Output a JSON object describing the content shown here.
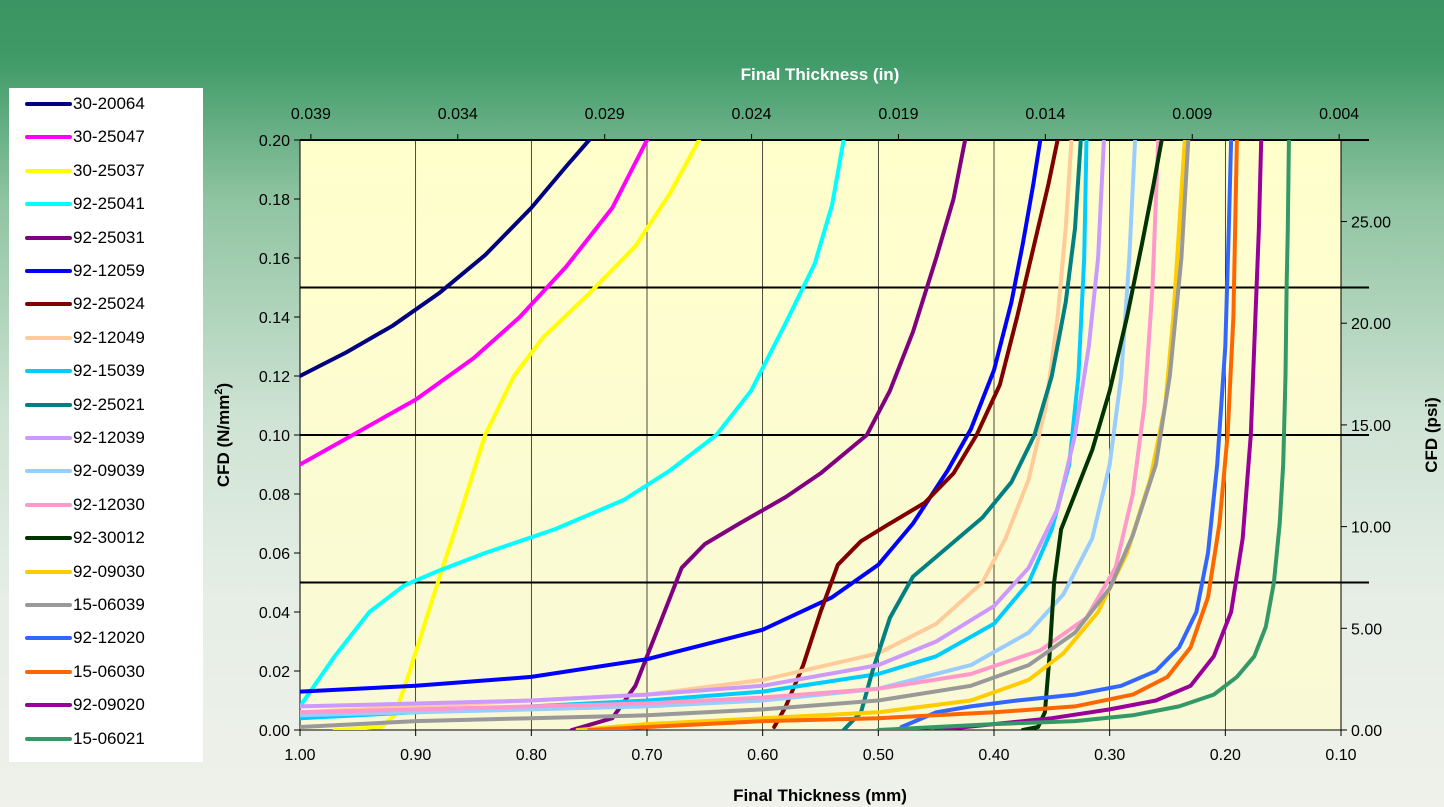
{
  "chart_data": {
    "type": "line",
    "xlabel_bottom": "Final Thickness (mm)",
    "xlabel_top": "Final Thickness (in)",
    "ylabel_left": "CFD (N/mm",
    "ylabel_left_sup": "2",
    "ylabel_left_close": ")",
    "ylabel_right": "CFD (psi)",
    "xlim": [
      1.0,
      0.1
    ],
    "ylim": [
      0,
      0.2
    ],
    "x_ticks_bottom": [
      "1.00",
      "0.90",
      "0.80",
      "0.70",
      "0.60",
      "0.50",
      "0.40",
      "0.30",
      "0.20",
      "0.10"
    ],
    "x_ticks_top": [
      "0.039",
      "0.034",
      "0.029",
      "0.024",
      "0.019",
      "0.014",
      "0.009",
      "0.004"
    ],
    "y_ticks_left": [
      "0.00",
      "0.02",
      "0.04",
      "0.06",
      "0.08",
      "0.10",
      "0.12",
      "0.14",
      "0.16",
      "0.18",
      "0.20"
    ],
    "y_ticks_right": [
      "0.00",
      "5.00",
      "10.00",
      "15.00",
      "20.00",
      "25.00"
    ],
    "reference_lines_y": [
      0.05,
      0.1,
      0.15
    ],
    "series": [
      {
        "name": "30-20064",
        "color": "#000080",
        "points": [
          [
            1.0,
            0.12
          ],
          [
            0.96,
            0.128
          ],
          [
            0.92,
            0.137
          ],
          [
            0.88,
            0.148
          ],
          [
            0.84,
            0.161
          ],
          [
            0.8,
            0.177
          ],
          [
            0.77,
            0.191
          ],
          [
            0.75,
            0.2
          ]
        ]
      },
      {
        "name": "30-25047",
        "color": "#ff00ff",
        "points": [
          [
            1.0,
            0.09
          ],
          [
            0.95,
            0.101
          ],
          [
            0.9,
            0.112
          ],
          [
            0.85,
            0.126
          ],
          [
            0.81,
            0.14
          ],
          [
            0.77,
            0.157
          ],
          [
            0.73,
            0.177
          ],
          [
            0.7,
            0.2
          ]
        ]
      },
      {
        "name": "30-25037",
        "color": "#ffff00",
        "points": [
          [
            0.97,
            0.0
          ],
          [
            0.93,
            0.001
          ],
          [
            0.918,
            0.005
          ],
          [
            0.905,
            0.02
          ],
          [
            0.885,
            0.045
          ],
          [
            0.86,
            0.075
          ],
          [
            0.84,
            0.1
          ],
          [
            0.815,
            0.12
          ],
          [
            0.79,
            0.133
          ],
          [
            0.75,
            0.148
          ],
          [
            0.71,
            0.164
          ],
          [
            0.68,
            0.182
          ],
          [
            0.655,
            0.2
          ]
        ]
      },
      {
        "name": "92-25041",
        "color": "#00ffff",
        "points": [
          [
            1.0,
            0.008
          ],
          [
            0.97,
            0.025
          ],
          [
            0.94,
            0.04
          ],
          [
            0.91,
            0.049
          ],
          [
            0.88,
            0.054
          ],
          [
            0.84,
            0.06
          ],
          [
            0.78,
            0.068
          ],
          [
            0.72,
            0.078
          ],
          [
            0.68,
            0.088
          ],
          [
            0.64,
            0.1
          ],
          [
            0.61,
            0.115
          ],
          [
            0.58,
            0.138
          ],
          [
            0.555,
            0.158
          ],
          [
            0.54,
            0.178
          ],
          [
            0.53,
            0.2
          ]
        ]
      },
      {
        "name": "92-25031",
        "color": "#800080",
        "points": [
          [
            0.765,
            0.0
          ],
          [
            0.73,
            0.004
          ],
          [
            0.71,
            0.015
          ],
          [
            0.69,
            0.035
          ],
          [
            0.67,
            0.055
          ],
          [
            0.65,
            0.063
          ],
          [
            0.62,
            0.07
          ],
          [
            0.58,
            0.079
          ],
          [
            0.55,
            0.087
          ],
          [
            0.51,
            0.1
          ],
          [
            0.49,
            0.115
          ],
          [
            0.47,
            0.135
          ],
          [
            0.45,
            0.16
          ],
          [
            0.435,
            0.18
          ],
          [
            0.425,
            0.2
          ]
        ]
      },
      {
        "name": "92-12059",
        "color": "#0000ff",
        "points": [
          [
            1.0,
            0.013
          ],
          [
            0.9,
            0.015
          ],
          [
            0.8,
            0.018
          ],
          [
            0.7,
            0.024
          ],
          [
            0.6,
            0.034
          ],
          [
            0.54,
            0.045
          ],
          [
            0.5,
            0.056
          ],
          [
            0.47,
            0.07
          ],
          [
            0.44,
            0.088
          ],
          [
            0.42,
            0.102
          ],
          [
            0.4,
            0.122
          ],
          [
            0.385,
            0.145
          ],
          [
            0.375,
            0.165
          ],
          [
            0.366,
            0.185
          ],
          [
            0.36,
            0.2
          ]
        ]
      },
      {
        "name": "92-25024",
        "color": "#800000",
        "points": [
          [
            0.59,
            0.001
          ],
          [
            0.58,
            0.008
          ],
          [
            0.565,
            0.022
          ],
          [
            0.55,
            0.04
          ],
          [
            0.535,
            0.056
          ],
          [
            0.515,
            0.064
          ],
          [
            0.49,
            0.07
          ],
          [
            0.46,
            0.077
          ],
          [
            0.435,
            0.087
          ],
          [
            0.415,
            0.1
          ],
          [
            0.395,
            0.117
          ],
          [
            0.38,
            0.14
          ],
          [
            0.365,
            0.165
          ],
          [
            0.353,
            0.185
          ],
          [
            0.345,
            0.2
          ]
        ]
      },
      {
        "name": "92-12049",
        "color": "#ffcc99",
        "points": [
          [
            1.0,
            0.006
          ],
          [
            0.9,
            0.008
          ],
          [
            0.8,
            0.01
          ],
          [
            0.7,
            0.012
          ],
          [
            0.6,
            0.017
          ],
          [
            0.5,
            0.026
          ],
          [
            0.45,
            0.036
          ],
          [
            0.41,
            0.05
          ],
          [
            0.39,
            0.065
          ],
          [
            0.37,
            0.085
          ],
          [
            0.355,
            0.11
          ],
          [
            0.345,
            0.14
          ],
          [
            0.338,
            0.17
          ],
          [
            0.333,
            0.2
          ]
        ]
      },
      {
        "name": "92-15039",
        "color": "#00ccff",
        "points": [
          [
            1.0,
            0.004
          ],
          [
            0.9,
            0.006
          ],
          [
            0.8,
            0.008
          ],
          [
            0.7,
            0.01
          ],
          [
            0.6,
            0.013
          ],
          [
            0.5,
            0.019
          ],
          [
            0.45,
            0.025
          ],
          [
            0.4,
            0.036
          ],
          [
            0.37,
            0.05
          ],
          [
            0.35,
            0.068
          ],
          [
            0.335,
            0.09
          ],
          [
            0.327,
            0.12
          ],
          [
            0.322,
            0.16
          ],
          [
            0.32,
            0.2
          ]
        ]
      },
      {
        "name": "92-25021",
        "color": "#008080",
        "points": [
          [
            0.53,
            0.0
          ],
          [
            0.515,
            0.006
          ],
          [
            0.505,
            0.02
          ],
          [
            0.49,
            0.038
          ],
          [
            0.47,
            0.052
          ],
          [
            0.44,
            0.062
          ],
          [
            0.41,
            0.072
          ],
          [
            0.385,
            0.084
          ],
          [
            0.365,
            0.1
          ],
          [
            0.35,
            0.12
          ],
          [
            0.338,
            0.145
          ],
          [
            0.33,
            0.17
          ],
          [
            0.325,
            0.2
          ]
        ]
      },
      {
        "name": "92-12039",
        "color": "#cc99ff",
        "points": [
          [
            1.0,
            0.008
          ],
          [
            0.9,
            0.009
          ],
          [
            0.8,
            0.01
          ],
          [
            0.7,
            0.012
          ],
          [
            0.6,
            0.015
          ],
          [
            0.5,
            0.022
          ],
          [
            0.45,
            0.03
          ],
          [
            0.4,
            0.042
          ],
          [
            0.37,
            0.055
          ],
          [
            0.345,
            0.075
          ],
          [
            0.33,
            0.1
          ],
          [
            0.318,
            0.13
          ],
          [
            0.31,
            0.16
          ],
          [
            0.305,
            0.2
          ]
        ]
      },
      {
        "name": "92-09039",
        "color": "#99ccff",
        "points": [
          [
            1.0,
            0.005
          ],
          [
            0.9,
            0.006
          ],
          [
            0.8,
            0.007
          ],
          [
            0.7,
            0.008
          ],
          [
            0.6,
            0.01
          ],
          [
            0.5,
            0.014
          ],
          [
            0.42,
            0.022
          ],
          [
            0.37,
            0.033
          ],
          [
            0.34,
            0.046
          ],
          [
            0.315,
            0.065
          ],
          [
            0.3,
            0.09
          ],
          [
            0.29,
            0.12
          ],
          [
            0.283,
            0.16
          ],
          [
            0.278,
            0.2
          ]
        ]
      },
      {
        "name": "92-12030",
        "color": "#ff99cc",
        "points": [
          [
            1.0,
            0.006
          ],
          [
            0.9,
            0.007
          ],
          [
            0.8,
            0.008
          ],
          [
            0.7,
            0.009
          ],
          [
            0.6,
            0.011
          ],
          [
            0.5,
            0.014
          ],
          [
            0.42,
            0.019
          ],
          [
            0.36,
            0.027
          ],
          [
            0.32,
            0.038
          ],
          [
            0.295,
            0.055
          ],
          [
            0.28,
            0.08
          ],
          [
            0.27,
            0.11
          ],
          [
            0.263,
            0.15
          ],
          [
            0.258,
            0.2
          ]
        ]
      },
      {
        "name": "92-30012",
        "color": "#003300",
        "points": [
          [
            0.375,
            0.0
          ],
          [
            0.362,
            0.001
          ],
          [
            0.356,
            0.006
          ],
          [
            0.352,
            0.025
          ],
          [
            0.348,
            0.05
          ],
          [
            0.342,
            0.068
          ],
          [
            0.33,
            0.08
          ],
          [
            0.315,
            0.095
          ],
          [
            0.3,
            0.115
          ],
          [
            0.285,
            0.14
          ],
          [
            0.272,
            0.165
          ],
          [
            0.262,
            0.185
          ],
          [
            0.255,
            0.2
          ]
        ]
      },
      {
        "name": "92-09030",
        "color": "#ffcc00",
        "points": [
          [
            0.76,
            0.0
          ],
          [
            0.7,
            0.002
          ],
          [
            0.6,
            0.004
          ],
          [
            0.5,
            0.006
          ],
          [
            0.42,
            0.01
          ],
          [
            0.37,
            0.017
          ],
          [
            0.34,
            0.026
          ],
          [
            0.31,
            0.04
          ],
          [
            0.285,
            0.06
          ],
          [
            0.265,
            0.085
          ],
          [
            0.252,
            0.11
          ],
          [
            0.245,
            0.14
          ],
          [
            0.24,
            0.17
          ],
          [
            0.235,
            0.2
          ]
        ]
      },
      {
        "name": "15-06039",
        "color": "#999999",
        "points": [
          [
            1.0,
            0.001
          ],
          [
            0.9,
            0.003
          ],
          [
            0.8,
            0.004
          ],
          [
            0.7,
            0.005
          ],
          [
            0.6,
            0.007
          ],
          [
            0.5,
            0.01
          ],
          [
            0.42,
            0.015
          ],
          [
            0.37,
            0.022
          ],
          [
            0.33,
            0.033
          ],
          [
            0.3,
            0.048
          ],
          [
            0.28,
            0.066
          ],
          [
            0.26,
            0.09
          ],
          [
            0.248,
            0.12
          ],
          [
            0.238,
            0.16
          ],
          [
            0.232,
            0.2
          ]
        ]
      },
      {
        "name": "92-12020",
        "color": "#3366ff",
        "points": [
          [
            0.48,
            0.001
          ],
          [
            0.45,
            0.006
          ],
          [
            0.42,
            0.008
          ],
          [
            0.38,
            0.01
          ],
          [
            0.33,
            0.012
          ],
          [
            0.29,
            0.015
          ],
          [
            0.26,
            0.02
          ],
          [
            0.24,
            0.028
          ],
          [
            0.225,
            0.04
          ],
          [
            0.215,
            0.06
          ],
          [
            0.207,
            0.09
          ],
          [
            0.2,
            0.13
          ],
          [
            0.197,
            0.17
          ],
          [
            0.195,
            0.2
          ]
        ]
      },
      {
        "name": "15-06030",
        "color": "#ff6600",
        "points": [
          [
            0.75,
            0.0
          ],
          [
            0.7,
            0.001
          ],
          [
            0.6,
            0.003
          ],
          [
            0.5,
            0.004
          ],
          [
            0.4,
            0.006
          ],
          [
            0.33,
            0.008
          ],
          [
            0.28,
            0.012
          ],
          [
            0.25,
            0.018
          ],
          [
            0.23,
            0.028
          ],
          [
            0.215,
            0.045
          ],
          [
            0.205,
            0.07
          ],
          [
            0.198,
            0.1
          ],
          [
            0.193,
            0.14
          ],
          [
            0.19,
            0.2
          ]
        ]
      },
      {
        "name": "92-09020",
        "color": "#990099",
        "points": [
          [
            0.45,
            0.0
          ],
          [
            0.4,
            0.002
          ],
          [
            0.35,
            0.004
          ],
          [
            0.3,
            0.007
          ],
          [
            0.26,
            0.01
          ],
          [
            0.23,
            0.015
          ],
          [
            0.21,
            0.025
          ],
          [
            0.195,
            0.04
          ],
          [
            0.185,
            0.065
          ],
          [
            0.178,
            0.1
          ],
          [
            0.174,
            0.14
          ],
          [
            0.171,
            0.17
          ],
          [
            0.169,
            0.2
          ]
        ]
      },
      {
        "name": "15-06021",
        "color": "#339966",
        "points": [
          [
            0.5,
            0.0
          ],
          [
            0.45,
            0.001
          ],
          [
            0.4,
            0.002
          ],
          [
            0.33,
            0.003
          ],
          [
            0.28,
            0.005
          ],
          [
            0.24,
            0.008
          ],
          [
            0.21,
            0.012
          ],
          [
            0.19,
            0.018
          ],
          [
            0.175,
            0.025
          ],
          [
            0.165,
            0.035
          ],
          [
            0.158,
            0.05
          ],
          [
            0.153,
            0.07
          ],
          [
            0.15,
            0.09
          ],
          [
            0.148,
            0.12
          ],
          [
            0.147,
            0.15
          ],
          [
            0.146,
            0.17
          ],
          [
            0.145,
            0.2
          ]
        ]
      }
    ]
  }
}
